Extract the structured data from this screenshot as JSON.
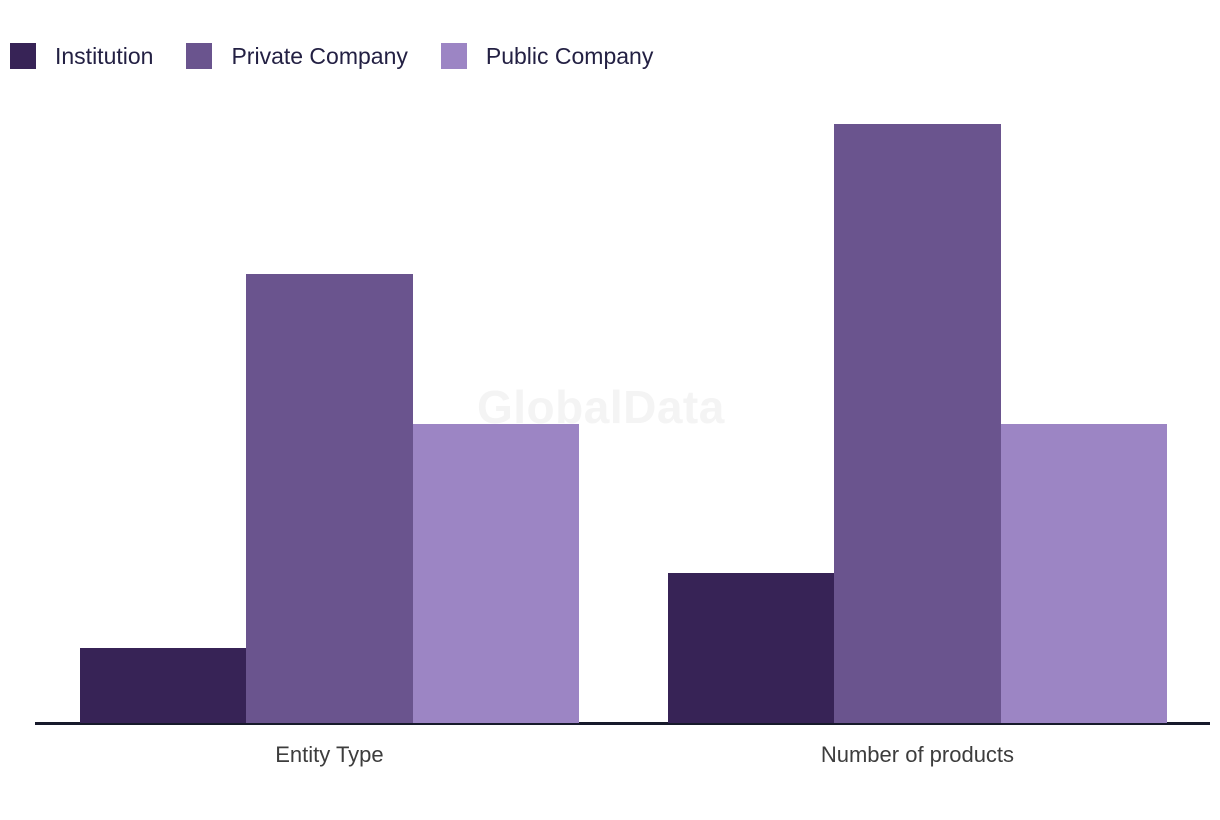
{
  "watermark": {
    "text": "GlobalData",
    "color": "#f4f4f4"
  },
  "legend": {
    "items": [
      {
        "label": "Institution",
        "color": "#372356"
      },
      {
        "label": "Private Company",
        "color": "#6a548e"
      },
      {
        "label": "Public Company",
        "color": "#9c85c4"
      }
    ]
  },
  "chart_data": {
    "type": "bar",
    "categories": [
      "Entity Type",
      "Number of products"
    ],
    "series": [
      {
        "name": "Institution",
        "color": "#372356",
        "values": [
          1,
          2
        ]
      },
      {
        "name": "Private Company",
        "color": "#6a548e",
        "values": [
          6,
          8
        ]
      },
      {
        "name": "Public Company",
        "color": "#9c85c4",
        "values": [
          4,
          4
        ]
      }
    ],
    "ylim": [
      0,
      8
    ],
    "grid": false,
    "y_axis_labels_visible": false,
    "legend_position": "top-left",
    "axis_line_color": "#171a2b",
    "category_label_color": "#3d3d3d",
    "title": "",
    "xlabel": "",
    "ylabel": ""
  }
}
